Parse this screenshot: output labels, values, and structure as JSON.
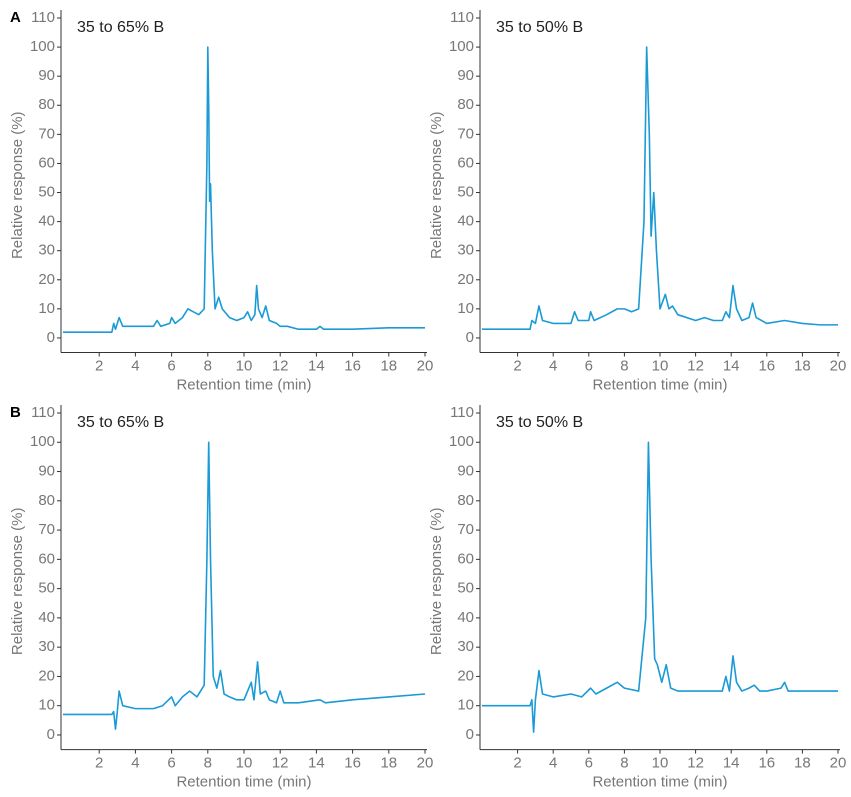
{
  "chart_data": [
    {
      "type": "line",
      "panel_label": "A",
      "title": "35 to 65% B",
      "xlabel": "Retention time (min)",
      "ylabel": "Relative response (%)",
      "xlim": [
        0,
        20
      ],
      "ylim": [
        -5,
        110
      ],
      "xticks": [
        2,
        4,
        6,
        8,
        10,
        12,
        14,
        16,
        18,
        20
      ],
      "yticks": [
        0,
        10,
        20,
        30,
        40,
        50,
        60,
        70,
        80,
        90,
        100,
        110
      ],
      "series": [
        {
          "color": "#1a9ad6",
          "x": [
            0,
            2.7,
            2.8,
            2.9,
            3.1,
            3.3,
            4,
            5,
            5.2,
            5.4,
            5.9,
            6,
            6.2,
            6.6,
            6.9,
            7.2,
            7.5,
            7.8,
            7.95,
            8.0,
            8.05,
            8.1,
            8.15,
            8.25,
            8.4,
            8.6,
            8.8,
            9.2,
            9.6,
            10,
            10.2,
            10.4,
            10.6,
            10.7,
            10.8,
            11,
            11.2,
            11.4,
            11.8,
            12,
            12.4,
            13,
            14,
            14.2,
            14.4,
            16,
            18,
            20
          ],
          "values": [
            2,
            2,
            5,
            3,
            7,
            4,
            4,
            4,
            6,
            4,
            5,
            7,
            5,
            7,
            10,
            9,
            8,
            10,
            60,
            100,
            80,
            47,
            53,
            30,
            10,
            14,
            10,
            7,
            6,
            7,
            9,
            6,
            8,
            18,
            10,
            7,
            11,
            6,
            5,
            4,
            4,
            3,
            3,
            4,
            3,
            3,
            3.5,
            3.5
          ]
        }
      ]
    },
    {
      "type": "line",
      "title": "35 to 50% B",
      "xlabel": "Retention time (min)",
      "ylabel": "Relative response (%)",
      "xlim": [
        0,
        20
      ],
      "ylim": [
        -5,
        110
      ],
      "xticks": [
        2,
        4,
        6,
        8,
        10,
        12,
        14,
        16,
        18,
        20
      ],
      "yticks": [
        0,
        10,
        20,
        30,
        40,
        50,
        60,
        70,
        80,
        90,
        100,
        110
      ],
      "series": [
        {
          "color": "#1a9ad6",
          "x": [
            0,
            2.7,
            2.8,
            3,
            3.2,
            3.4,
            4,
            5,
            5.2,
            5.4,
            6,
            6.1,
            6.3,
            7,
            7.6,
            8,
            8.4,
            8.8,
            9.1,
            9.25,
            9.4,
            9.5,
            9.65,
            9.8,
            10,
            10.3,
            10.5,
            10.7,
            11,
            12,
            12.5,
            13,
            13.5,
            13.7,
            13.9,
            14.1,
            14.3,
            14.6,
            15,
            15.2,
            15.4,
            16,
            17,
            18,
            19,
            20
          ],
          "values": [
            3,
            3,
            6,
            5,
            11,
            6,
            5,
            5,
            9,
            6,
            6,
            9,
            6,
            8,
            10,
            10,
            9,
            10,
            40,
            100,
            70,
            35,
            50,
            30,
            10,
            15,
            10,
            11,
            8,
            6,
            7,
            6,
            6,
            9,
            7,
            18,
            10,
            6,
            7,
            12,
            7,
            5,
            6,
            5,
            4.5,
            4.5
          ]
        }
      ]
    },
    {
      "type": "line",
      "panel_label": "B",
      "title": "35 to 65% B",
      "xlabel": "Retention time (min)",
      "ylabel": "Relative response (%)",
      "xlim": [
        0,
        20
      ],
      "ylim": [
        -5,
        110
      ],
      "xticks": [
        2,
        4,
        6,
        8,
        10,
        12,
        14,
        16,
        18,
        20
      ],
      "yticks": [
        0,
        10,
        20,
        30,
        40,
        50,
        60,
        70,
        80,
        90,
        100,
        110
      ],
      "series": [
        {
          "color": "#1a9ad6",
          "x": [
            0,
            2.7,
            2.8,
            2.9,
            3,
            3.1,
            3.3,
            4,
            5,
            5.5,
            6,
            6.2,
            6.6,
            7,
            7.4,
            7.8,
            7.95,
            8.05,
            8.15,
            8.3,
            8.5,
            8.7,
            8.9,
            9.2,
            9.6,
            10,
            10.4,
            10.55,
            10.75,
            10.9,
            11.2,
            11.4,
            11.8,
            12,
            12.2,
            13,
            14.2,
            14.5,
            16,
            18,
            20
          ],
          "values": [
            7,
            7,
            8,
            2,
            8,
            15,
            10,
            9,
            9,
            10,
            13,
            10,
            13,
            15,
            13,
            17,
            60,
            100,
            60,
            20,
            16,
            22,
            14,
            13,
            12,
            12,
            18,
            12,
            25,
            14,
            15,
            12,
            11,
            15,
            11,
            11,
            12,
            11,
            12,
            13,
            14
          ]
        }
      ]
    },
    {
      "type": "line",
      "title": "35 to 50% B",
      "xlabel": "Retention time (min)",
      "ylabel": "Relative response (%)",
      "xlim": [
        0,
        20
      ],
      "ylim": [
        -5,
        110
      ],
      "xticks": [
        2,
        4,
        6,
        8,
        10,
        12,
        14,
        16,
        18,
        20
      ],
      "yticks": [
        0,
        10,
        20,
        30,
        40,
        50,
        60,
        70,
        80,
        90,
        100,
        110
      ],
      "series": [
        {
          "color": "#1a9ad6",
          "x": [
            0,
            2.7,
            2.8,
            2.9,
            3,
            3.2,
            3.4,
            4,
            5,
            5.6,
            6.1,
            6.4,
            7,
            7.6,
            8,
            8.8,
            9.2,
            9.35,
            9.5,
            9.7,
            9.85,
            10.1,
            10.35,
            10.6,
            11,
            12,
            13,
            13.5,
            13.7,
            13.9,
            14.1,
            14.3,
            14.6,
            15,
            15.3,
            15.6,
            16,
            16.8,
            17,
            17.2,
            18,
            19,
            20
          ],
          "values": [
            10,
            10,
            12,
            1,
            12,
            22,
            14,
            13,
            14,
            13,
            16,
            14,
            16,
            18,
            16,
            15,
            40,
            100,
            60,
            26,
            24,
            18,
            24,
            16,
            15,
            15,
            15,
            15,
            20,
            15,
            27,
            18,
            15,
            16,
            17,
            15,
            15,
            16,
            18,
            15,
            15,
            15,
            15
          ]
        }
      ]
    }
  ]
}
